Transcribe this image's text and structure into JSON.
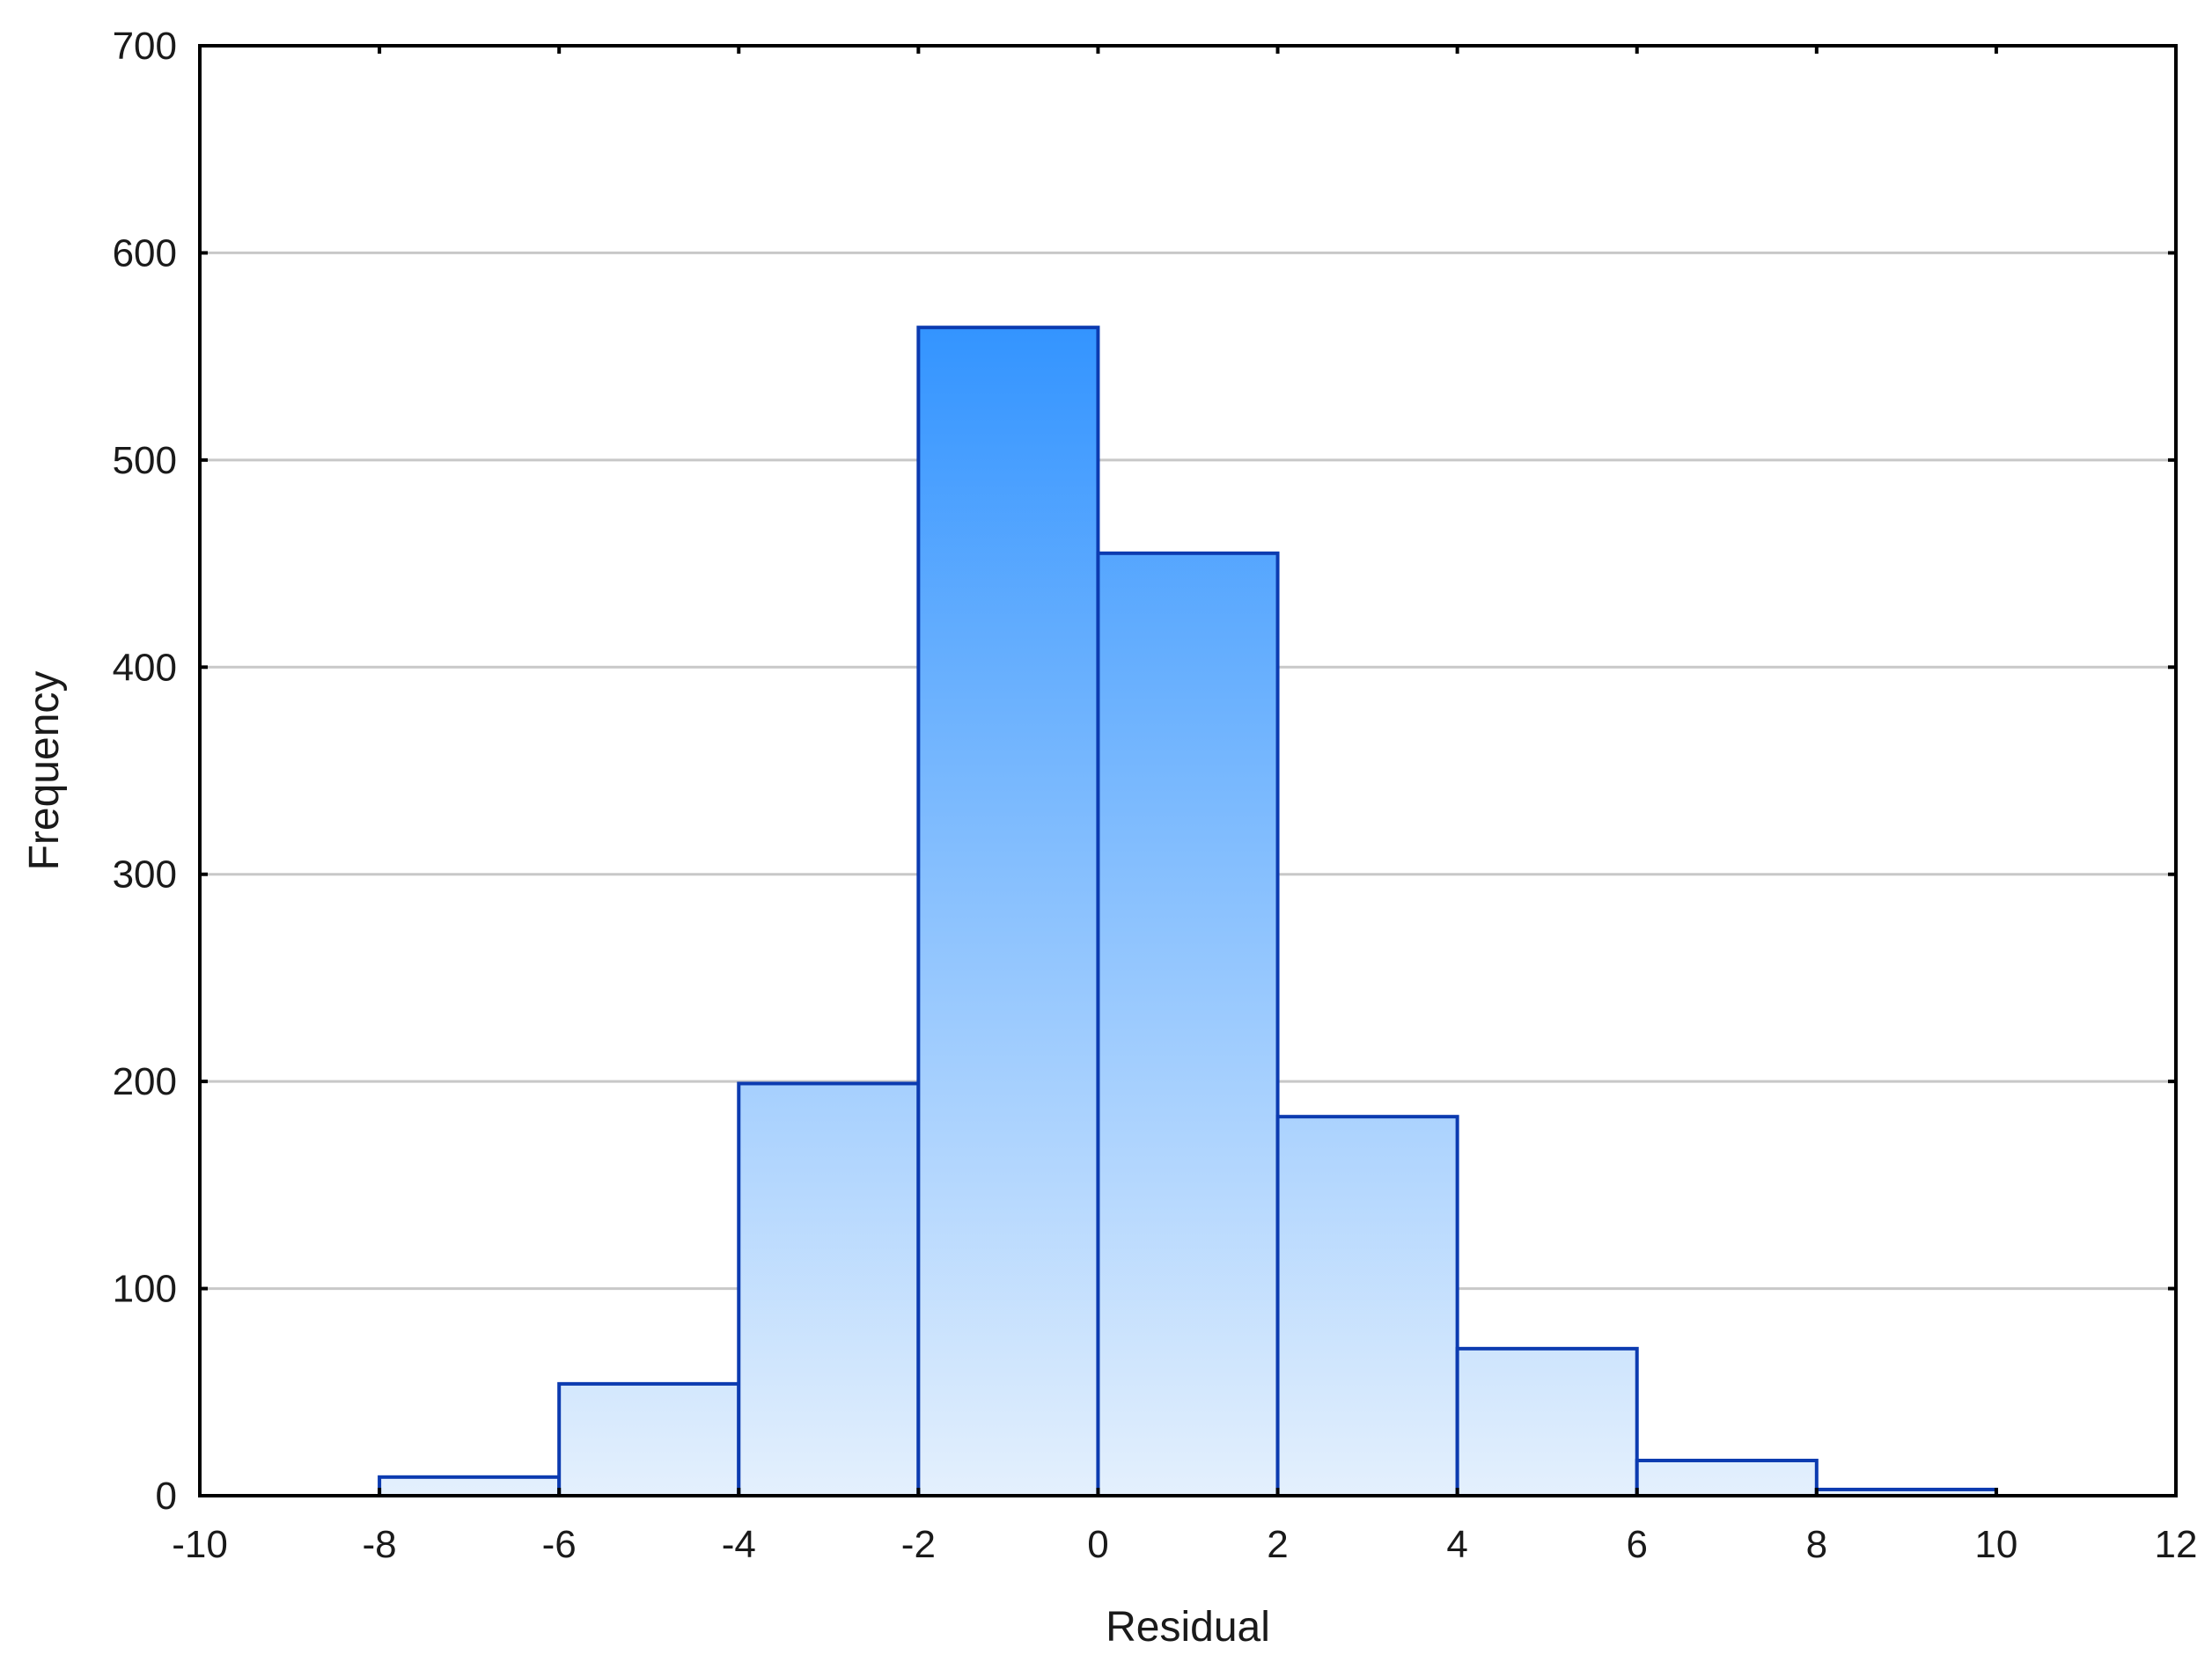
{
  "chart_data": {
    "type": "bar",
    "subtype": "histogram",
    "xlabel": "Residual",
    "ylabel": "Frequency",
    "xlim": [
      -10,
      12
    ],
    "ylim": [
      0,
      700
    ],
    "xticks": [
      -10,
      -8,
      -6,
      -4,
      -2,
      0,
      2,
      4,
      6,
      8,
      10,
      12
    ],
    "yticks": [
      0,
      100,
      200,
      300,
      400,
      500,
      600,
      700
    ],
    "grid": "horizontal",
    "bins": [
      {
        "from": -8,
        "to": -6,
        "value": 9
      },
      {
        "from": -6,
        "to": -4,
        "value": 54
      },
      {
        "from": -4,
        "to": -2,
        "value": 199
      },
      {
        "from": -2,
        "to": 0,
        "value": 564
      },
      {
        "from": 0,
        "to": 2,
        "value": 455
      },
      {
        "from": 2,
        "to": 4,
        "value": 183
      },
      {
        "from": 4,
        "to": 6,
        "value": 71
      },
      {
        "from": 6,
        "to": 8,
        "value": 17
      },
      {
        "from": 8,
        "to": 10,
        "value": 3
      }
    ],
    "colors": {
      "bar_fill_top": "#3394ff",
      "bar_fill_bottom": "#e4f0fd",
      "bar_stroke": "#0c3bb0",
      "grid": "#c8c8c8",
      "frame": "#000000"
    }
  }
}
